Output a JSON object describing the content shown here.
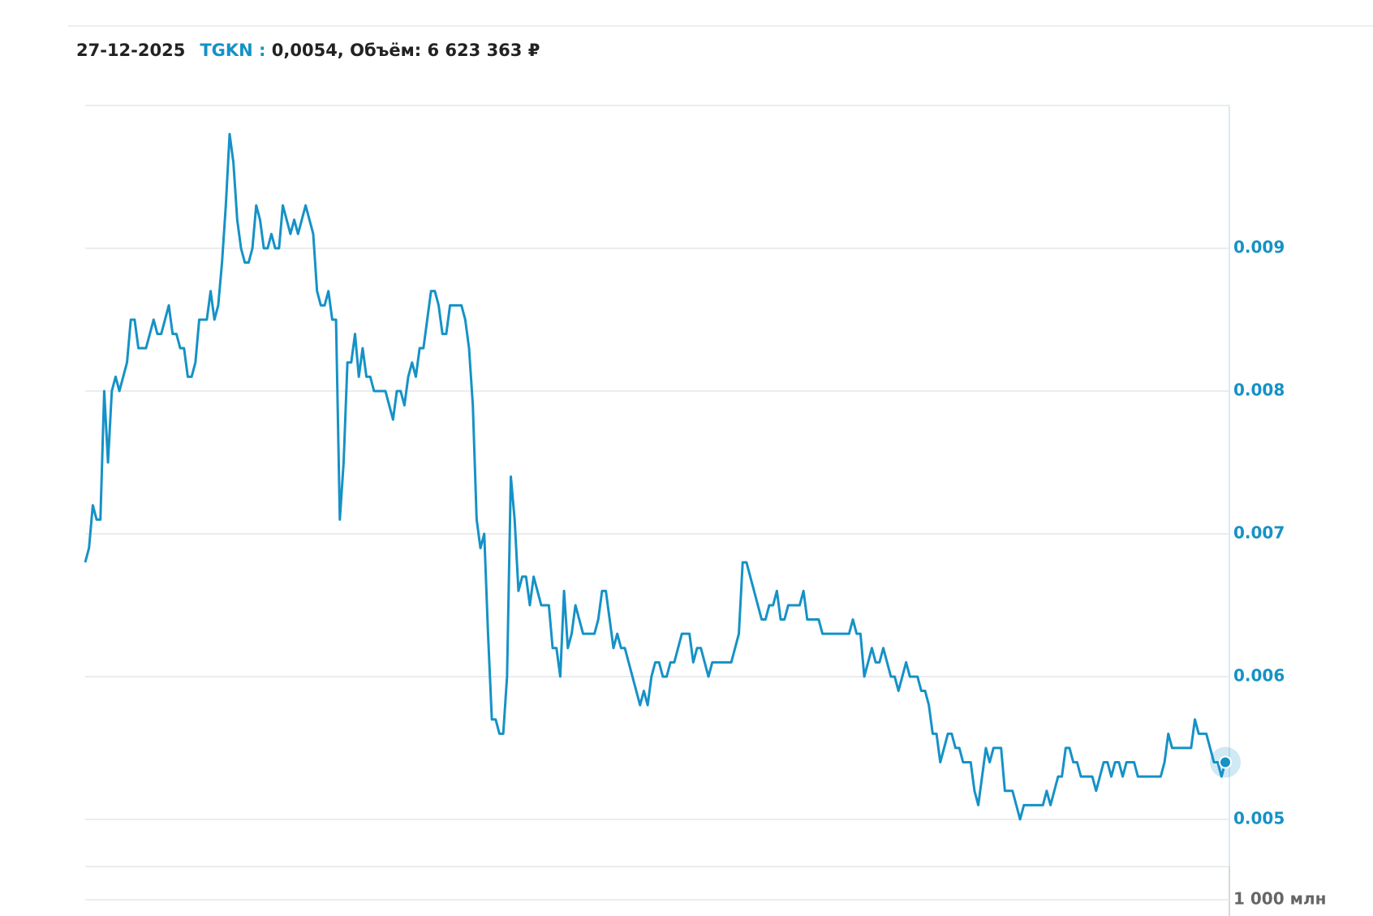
{
  "header": {
    "date": "27-12-2025",
    "ticker": "TGKN :",
    "quote": "0,0054, Объём: 6 623 363 ₽"
  },
  "chart_data": {
    "type": "line",
    "color": "#1592c6",
    "grid": true,
    "ylim": [
      0.00467,
      0.01
    ],
    "yticks": [
      0.005,
      0.006,
      0.007,
      0.008,
      0.009
    ],
    "values": [
      0.0068,
      0.0069,
      0.0072,
      0.0071,
      0.0071,
      0.008,
      0.0075,
      0.008,
      0.0081,
      0.008,
      0.0081,
      0.0082,
      0.0085,
      0.0085,
      0.0083,
      0.0083,
      0.0083,
      0.0084,
      0.0085,
      0.0084,
      0.0084,
      0.0085,
      0.0086,
      0.0084,
      0.0084,
      0.0083,
      0.0083,
      0.0081,
      0.0081,
      0.0082,
      0.0085,
      0.0085,
      0.0085,
      0.0087,
      0.0085,
      0.0086,
      0.0089,
      0.0093,
      0.0098,
      0.0096,
      0.0092,
      0.009,
      0.0089,
      0.0089,
      0.009,
      0.0093,
      0.0092,
      0.009,
      0.009,
      0.0091,
      0.009,
      0.009,
      0.0093,
      0.0092,
      0.0091,
      0.0092,
      0.0091,
      0.0092,
      0.0093,
      0.0092,
      0.0091,
      0.0087,
      0.0086,
      0.0086,
      0.0087,
      0.0085,
      0.0085,
      0.0071,
      0.0075,
      0.0082,
      0.0082,
      0.0084,
      0.0081,
      0.0083,
      0.0081,
      0.0081,
      0.008,
      0.008,
      0.008,
      0.008,
      0.0079,
      0.0078,
      0.008,
      0.008,
      0.0079,
      0.0081,
      0.0082,
      0.0081,
      0.0083,
      0.0083,
      0.0085,
      0.0087,
      0.0087,
      0.0086,
      0.0084,
      0.0084,
      0.0086,
      0.0086,
      0.0086,
      0.0086,
      0.0085,
      0.0083,
      0.0079,
      0.0071,
      0.0069,
      0.007,
      0.0063,
      0.0057,
      0.0057,
      0.0056,
      0.0056,
      0.006,
      0.0074,
      0.0071,
      0.0066,
      0.0067,
      0.0067,
      0.0065,
      0.0067,
      0.0066,
      0.0065,
      0.0065,
      0.0065,
      0.0062,
      0.0062,
      0.006,
      0.0066,
      0.0062,
      0.0063,
      0.0065,
      0.0064,
      0.0063,
      0.0063,
      0.0063,
      0.0063,
      0.0064,
      0.0066,
      0.0066,
      0.0064,
      0.0062,
      0.0063,
      0.0062,
      0.0062,
      0.0061,
      0.006,
      0.0059,
      0.0058,
      0.0059,
      0.0058,
      0.006,
      0.0061,
      0.0061,
      0.006,
      0.006,
      0.0061,
      0.0061,
      0.0062,
      0.0063,
      0.0063,
      0.0063,
      0.0061,
      0.0062,
      0.0062,
      0.0061,
      0.006,
      0.0061,
      0.0061,
      0.0061,
      0.0061,
      0.0061,
      0.0061,
      0.0062,
      0.0063,
      0.0068,
      0.0068,
      0.0067,
      0.0066,
      0.0065,
      0.0064,
      0.0064,
      0.0065,
      0.0065,
      0.0066,
      0.0064,
      0.0064,
      0.0065,
      0.0065,
      0.0065,
      0.0065,
      0.0066,
      0.0064,
      0.0064,
      0.0064,
      0.0064,
      0.0063,
      0.0063,
      0.0063,
      0.0063,
      0.0063,
      0.0063,
      0.0063,
      0.0063,
      0.0064,
      0.0063,
      0.0063,
      0.006,
      0.0061,
      0.0062,
      0.0061,
      0.0061,
      0.0062,
      0.0061,
      0.006,
      0.006,
      0.0059,
      0.006,
      0.0061,
      0.006,
      0.006,
      0.006,
      0.0059,
      0.0059,
      0.0058,
      0.0056,
      0.0056,
      0.0054,
      0.0055,
      0.0056,
      0.0056,
      0.0055,
      0.0055,
      0.0054,
      0.0054,
      0.0054,
      0.0052,
      0.0051,
      0.0053,
      0.0055,
      0.0054,
      0.0055,
      0.0055,
      0.0055,
      0.0052,
      0.0052,
      0.0052,
      0.0051,
      0.005,
      0.0051,
      0.0051,
      0.0051,
      0.0051,
      0.0051,
      0.0051,
      0.0052,
      0.0051,
      0.0052,
      0.0053,
      0.0053,
      0.0055,
      0.0055,
      0.0054,
      0.0054,
      0.0053,
      0.0053,
      0.0053,
      0.0053,
      0.0052,
      0.0053,
      0.0054,
      0.0054,
      0.0053,
      0.0054,
      0.0054,
      0.0053,
      0.0054,
      0.0054,
      0.0054,
      0.0053,
      0.0053,
      0.0053,
      0.0053,
      0.0053,
      0.0053,
      0.0053,
      0.0054,
      0.0056,
      0.0055,
      0.0055,
      0.0055,
      0.0055,
      0.0055,
      0.0055,
      0.0057,
      0.0056,
      0.0056,
      0.0056,
      0.0055,
      0.0054,
      0.0054,
      0.0053,
      0.0054
    ]
  },
  "volume_axis": {
    "yticks": [
      {
        "value": 1000000000,
        "label": "1 000 млн"
      }
    ]
  }
}
